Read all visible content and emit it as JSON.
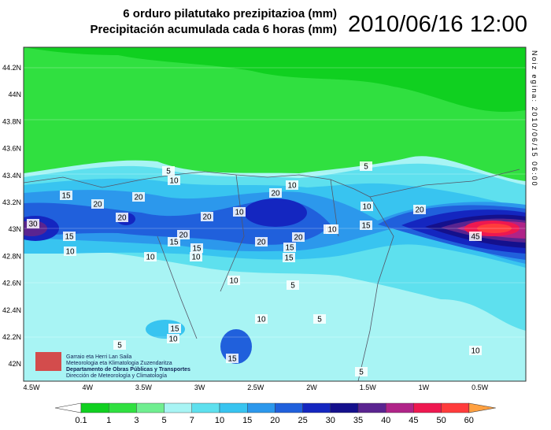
{
  "header": {
    "title_eu": "6 orduro pilatutako prezipitazioa (mm)",
    "title_es": "Precipitación acumulada cada 6 horas (mm)",
    "datetime": "2010/06/16 12:00"
  },
  "side_note": "Noiz egina: 2010/06/15 06:00",
  "axes": {
    "lat_labels": [
      "44.2N",
      "44N",
      "43.8N",
      "43.6N",
      "43.4N",
      "43.2N",
      "43N",
      "42.8N",
      "42.6N",
      "42.4N",
      "42.2N",
      "42N"
    ],
    "lon_labels": [
      "4.5W",
      "4W",
      "3.5W",
      "3W",
      "2.5W",
      "2W",
      "1.5W",
      "1W",
      "0.5W"
    ]
  },
  "contour_labels": [
    30,
    20,
    15,
    20,
    10,
    20,
    10,
    5,
    5,
    10,
    15,
    20,
    15,
    20,
    20,
    20,
    10,
    20,
    15,
    10,
    5,
    10,
    5,
    15,
    10,
    15,
    15,
    10,
    15,
    10,
    20,
    45,
    10,
    10,
    15,
    10,
    5,
    5,
    10
  ],
  "logo": {
    "line1": "Garraio eta Herri Lan Saila",
    "line2": "Meteorologia eta Klimatologia Zuzendaritza",
    "line3": "Departamento de Obras Públicas y Transportes",
    "line4": "Dirección de Meteorología y Climatología"
  },
  "colorbar": {
    "levels": [
      0.1,
      1,
      3,
      5,
      7,
      10,
      15,
      20,
      25,
      30,
      35,
      40,
      45,
      50,
      60
    ],
    "colors": [
      "#10d020",
      "#30e040",
      "#70ee90",
      "#a8f4f4",
      "#5ee0ee",
      "#38c4f0",
      "#2c98ec",
      "#2060dc",
      "#1426c0",
      "#14108c",
      "#5a2490",
      "#b02488",
      "#ee1850",
      "#ff3c3c",
      "#ffa040"
    ]
  }
}
